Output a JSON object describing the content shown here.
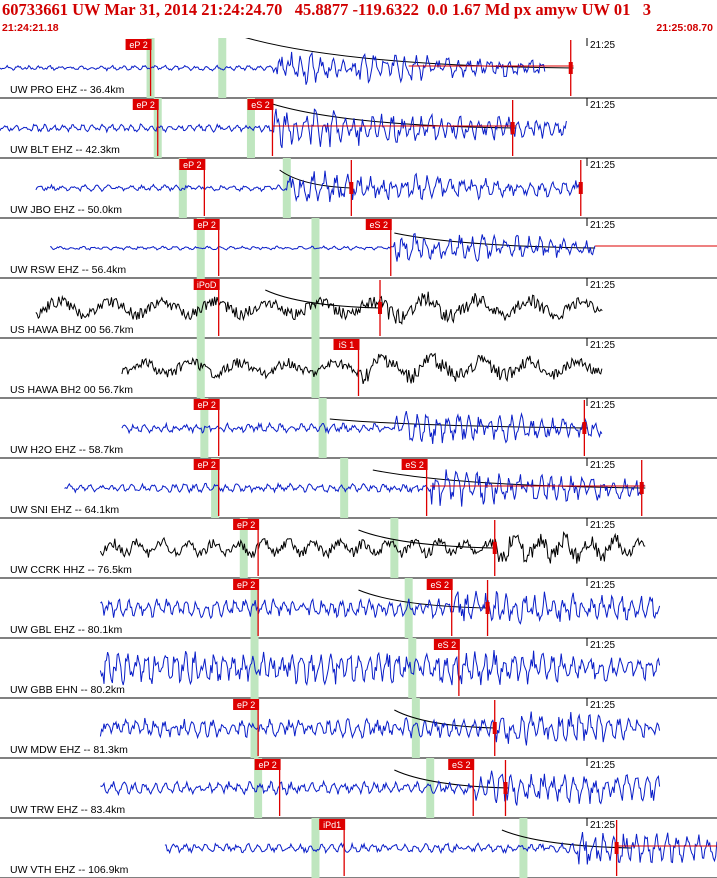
{
  "header": {
    "title": "60733661 UW Mar 31, 2014 21:24:24.70   45.8877 -119.6322  0.0 1.67 Md px amyw UW 01   3",
    "start_time": "21:24:21.18",
    "end_time": "21:25:08.70"
  },
  "colors": {
    "header_text": "#d10000",
    "pick": "#dd0000",
    "coda": "#000000",
    "window_green": "#bfe6bf",
    "trace_short_period": "#0a1ec8",
    "trace_broadband": "#000000"
  },
  "minute_label": "21:25",
  "traces": [
    {
      "label": "UW PRO EHZ -- 36.4km",
      "color": "blue",
      "noise": 0.08,
      "amp": 0.55,
      "freq": 0.6,
      "start": 0.0,
      "end": 0.76,
      "onset": 0.38,
      "green": [
        0.21,
        0.31
      ],
      "picks": [
        {
          "label": "eP 2",
          "pos": 0.21,
          "box": true
        },
        {
          "label": "",
          "pos": 0.796,
          "box": false
        }
      ],
      "coda": {
        "from": 0.33,
        "to": 0.8,
        "tall": 0.55
      },
      "redline": [
        0.57,
        0.8
      ]
    },
    {
      "label": "UW BLT EHZ -- 42.3km",
      "color": "blue",
      "noise": 0.12,
      "amp": 0.65,
      "freq": 0.65,
      "start": 0.0,
      "end": 0.79,
      "onset": 0.38,
      "green": [
        0.22,
        0.35
      ],
      "picks": [
        {
          "label": "eP 2",
          "pos": 0.22,
          "box": true
        },
        {
          "label": "eS 2",
          "pos": 0.38,
          "box": true
        },
        {
          "label": "",
          "pos": 0.715,
          "box": false
        }
      ],
      "coda": {
        "from": 0.38,
        "to": 0.72,
        "tall": 0.4
      },
      "redline": [
        0.38,
        0.72
      ]
    },
    {
      "label": "UW JBO EHZ -- 50.0km",
      "color": "blue",
      "noise": 0.1,
      "amp": 0.55,
      "freq": 0.55,
      "start": 0.05,
      "end": 0.81,
      "onset": 0.4,
      "green": [
        0.255,
        0.4
      ],
      "picks": [
        {
          "label": "eP 2",
          "pos": 0.285,
          "box": true
        },
        {
          "label": "",
          "pos": 0.49,
          "box": false
        },
        {
          "label": "",
          "pos": 0.81,
          "box": false
        }
      ],
      "coda": {
        "from": 0.39,
        "to": 0.49,
        "tall": 0.3
      },
      "redline": null
    },
    {
      "label": "UW RSW EHZ -- 56.4km",
      "color": "blue",
      "noise": 0.06,
      "amp": 0.5,
      "freq": 0.55,
      "start": 0.07,
      "end": 0.83,
      "onset": 0.55,
      "green": [
        0.28,
        0.44
      ],
      "picks": [
        {
          "label": "eP 2",
          "pos": 0.305,
          "box": true
        },
        {
          "label": "eS 2",
          "pos": 0.545,
          "box": true
        }
      ],
      "coda": {
        "from": 0.55,
        "to": 0.83,
        "tall": 0.25
      },
      "redline": [
        0.83,
        1.0
      ]
    },
    {
      "label": "US HAWA BHZ 00 56.7km",
      "color": "black",
      "noise": 0.35,
      "amp": 0.55,
      "freq": 0.12,
      "start": 0.05,
      "end": 0.84,
      "onset": 0.53,
      "green": [
        0.28,
        0.44
      ],
      "picks": [
        {
          "label": "iPoD",
          "pos": 0.305,
          "box": true
        },
        {
          "label": "",
          "pos": 0.53,
          "box": false
        }
      ],
      "coda": {
        "from": 0.37,
        "to": 0.53,
        "tall": 0.3
      },
      "redline": null
    },
    {
      "label": "US HAWA BH2 00 56.7km",
      "color": "black",
      "noise": 0.3,
      "amp": 0.55,
      "freq": 0.13,
      "start": 0.17,
      "end": 0.84,
      "onset": 0.5,
      "green": [
        0.28,
        0.44
      ],
      "picks": [
        {
          "label": "iS 1",
          "pos": 0.5,
          "box": true
        }
      ],
      "coda": null,
      "redline": null
    },
    {
      "label": "UW H2O EHZ -- 58.7km",
      "color": "blue",
      "noise": 0.15,
      "amp": 0.55,
      "freq": 0.6,
      "start": 0.17,
      "end": 0.84,
      "onset": 0.55,
      "green": [
        0.285,
        0.45
      ],
      "picks": [
        {
          "label": "eP 2",
          "pos": 0.305,
          "box": true
        },
        {
          "label": "",
          "pos": 0.815,
          "box": false
        }
      ],
      "coda": {
        "from": 0.46,
        "to": 0.82,
        "tall": 0.15
      },
      "redline": null
    },
    {
      "label": "UW SNI EHZ -- 64.1km",
      "color": "blue",
      "noise": 0.14,
      "amp": 0.6,
      "freq": 0.6,
      "start": 0.09,
      "end": 0.9,
      "onset": 0.6,
      "green": [
        0.3,
        0.48
      ],
      "picks": [
        {
          "label": "eP 2",
          "pos": 0.305,
          "box": true
        },
        {
          "label": "eS 2",
          "pos": 0.595,
          "box": true
        },
        {
          "label": "",
          "pos": 0.895,
          "box": false
        }
      ],
      "coda": {
        "from": 0.52,
        "to": 0.9,
        "tall": 0.3
      },
      "redline": [
        0.6,
        0.9
      ]
    },
    {
      "label": "UW CCRK HHZ -- 76.5km",
      "color": "black",
      "noise": 0.3,
      "amp": 0.55,
      "freq": 0.25,
      "start": 0.14,
      "end": 0.9,
      "onset": 0.69,
      "green": [
        0.34,
        0.55
      ],
      "picks": [
        {
          "label": "eP 2",
          "pos": 0.36,
          "box": true
        },
        {
          "label": "",
          "pos": 0.69,
          "box": false
        }
      ],
      "coda": {
        "from": 0.5,
        "to": 0.69,
        "tall": 0.3
      },
      "redline": null
    },
    {
      "label": "UW GBL EHZ -- 80.1km",
      "color": "blue",
      "noise": 0.3,
      "amp": 0.6,
      "freq": 0.65,
      "start": 0.14,
      "end": 0.92,
      "onset": 0.63,
      "green": [
        0.355,
        0.57
      ],
      "picks": [
        {
          "label": "eP 2",
          "pos": 0.36,
          "box": true
        },
        {
          "label": "eS 2",
          "pos": 0.63,
          "box": true
        },
        {
          "label": "",
          "pos": 0.68,
          "box": false
        }
      ],
      "coda": {
        "from": 0.5,
        "to": 0.68,
        "tall": 0.3
      },
      "redline": null
    },
    {
      "label": "UW GBB EHN -- 80.2km",
      "color": "blue",
      "noise": 0.55,
      "amp": 0.6,
      "freq": 0.65,
      "start": 0.14,
      "end": 0.92,
      "onset": 0.64,
      "green": [
        0.355,
        0.575
      ],
      "picks": [
        {
          "label": "eS 2",
          "pos": 0.64,
          "box": true
        }
      ],
      "coda": null,
      "redline": null
    },
    {
      "label": "UW MDW EHZ -- 81.3km",
      "color": "blue",
      "noise": 0.3,
      "amp": 0.6,
      "freq": 0.65,
      "start": 0.14,
      "end": 0.92,
      "onset": 0.69,
      "green": [
        0.355,
        0.58
      ],
      "picks": [
        {
          "label": "eP 2",
          "pos": 0.36,
          "box": true
        },
        {
          "label": "",
          "pos": 0.69,
          "box": false
        }
      ],
      "coda": {
        "from": 0.55,
        "to": 0.69,
        "tall": 0.3
      },
      "redline": null
    },
    {
      "label": "UW TRW EHZ -- 83.4km",
      "color": "blue",
      "noise": 0.2,
      "amp": 0.6,
      "freq": 0.6,
      "start": 0.14,
      "end": 0.92,
      "onset": 0.66,
      "green": [
        0.36,
        0.6
      ],
      "picks": [
        {
          "label": "eP 2",
          "pos": 0.39,
          "box": true
        },
        {
          "label": "eS 2",
          "pos": 0.66,
          "box": true
        },
        {
          "label": "",
          "pos": 0.705,
          "box": false
        }
      ],
      "coda": {
        "from": 0.55,
        "to": 0.71,
        "tall": 0.3
      },
      "redline": null
    },
    {
      "label": "UW VTH EHZ -- 106.9km",
      "color": "blue",
      "noise": 0.15,
      "amp": 0.6,
      "freq": 0.6,
      "start": 0.23,
      "end": 1.0,
      "onset": 0.8,
      "green": [
        0.44,
        0.73
      ],
      "picks": [
        {
          "label": "iPd1",
          "pos": 0.48,
          "box": true
        },
        {
          "label": "",
          "pos": 0.86,
          "box": false
        }
      ],
      "coda": {
        "from": 0.7,
        "to": 0.88,
        "tall": 0.3
      },
      "redline": [
        0.86,
        1.0
      ]
    }
  ]
}
